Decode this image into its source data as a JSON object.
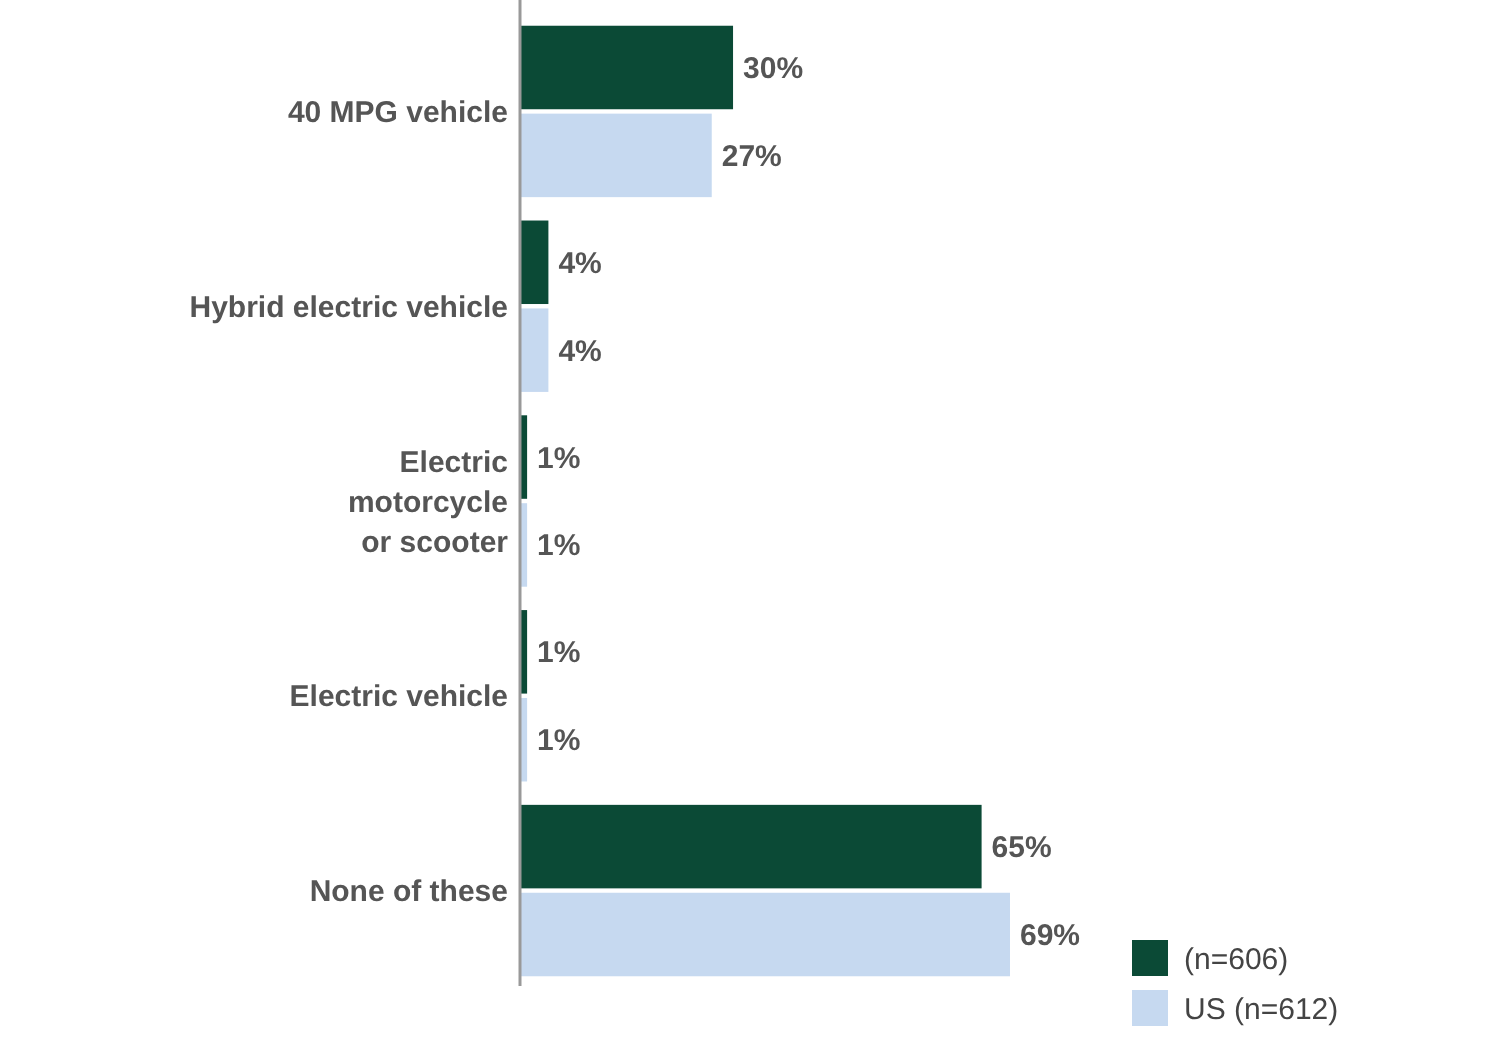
{
  "chart_data": {
    "type": "bar",
    "orientation": "horizontal",
    "categories": [
      "40 MPG vehicle",
      "Hybrid electric vehicle",
      "Electric motorcycle or scooter",
      "Electric vehicle",
      "None of these"
    ],
    "series": [
      {
        "name": "(n=606)",
        "color": "#0b4a36",
        "values": [
          30,
          4,
          1,
          1,
          65
        ],
        "value_labels": [
          "30%",
          "4%",
          "1%",
          "1%",
          "65%"
        ]
      },
      {
        "name": "US (n=612)",
        "color": "#c6d9f0",
        "values": [
          27,
          4,
          1,
          1,
          69
        ],
        "value_labels": [
          "27%",
          "4%",
          "1%",
          "1%",
          "69%"
        ]
      }
    ],
    "legend": "bottom right"
  }
}
